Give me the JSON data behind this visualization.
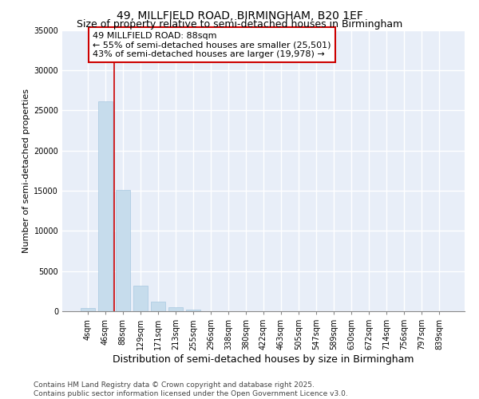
{
  "title": "49, MILLFIELD ROAD, BIRMINGHAM, B20 1EF",
  "subtitle": "Size of property relative to semi-detached houses in Birmingham",
  "xlabel": "Distribution of semi-detached houses by size in Birmingham",
  "ylabel": "Number of semi-detached properties",
  "annotation_line1": "49 MILLFIELD ROAD: 88sqm",
  "annotation_line2": "← 55% of semi-detached houses are smaller (25,501)",
  "annotation_line3": "43% of semi-detached houses are larger (19,978) →",
  "bar_categories": [
    "4sqm",
    "46sqm",
    "88sqm",
    "129sqm",
    "171sqm",
    "213sqm",
    "255sqm",
    "296sqm",
    "338sqm",
    "380sqm",
    "422sqm",
    "463sqm",
    "505sqm",
    "547sqm",
    "589sqm",
    "630sqm",
    "672sqm",
    "714sqm",
    "756sqm",
    "797sqm",
    "839sqm"
  ],
  "bar_values": [
    400,
    26100,
    15100,
    3200,
    1200,
    450,
    200,
    0,
    0,
    0,
    0,
    0,
    0,
    0,
    0,
    0,
    0,
    0,
    0,
    0,
    0
  ],
  "bar_color": "#c6dcec",
  "bar_edgecolor": "#a8c8e0",
  "vline_color": "#cc0000",
  "vline_x_index": 1.5,
  "annotation_box_edgecolor": "#cc0000",
  "plot_bg_color": "#e8eef8",
  "grid_color": "#ffffff",
  "fig_bg_color": "#ffffff",
  "ylim": [
    0,
    35000
  ],
  "yticks": [
    0,
    5000,
    10000,
    15000,
    20000,
    25000,
    30000,
    35000
  ],
  "title_fontsize": 10,
  "subtitle_fontsize": 9,
  "annotation_fontsize": 8,
  "axis_label_fontsize": 8,
  "tick_fontsize": 7,
  "footer_fontsize": 6.5,
  "footer_text": "Contains HM Land Registry data © Crown copyright and database right 2025.\nContains public sector information licensed under the Open Government Licence v3.0."
}
